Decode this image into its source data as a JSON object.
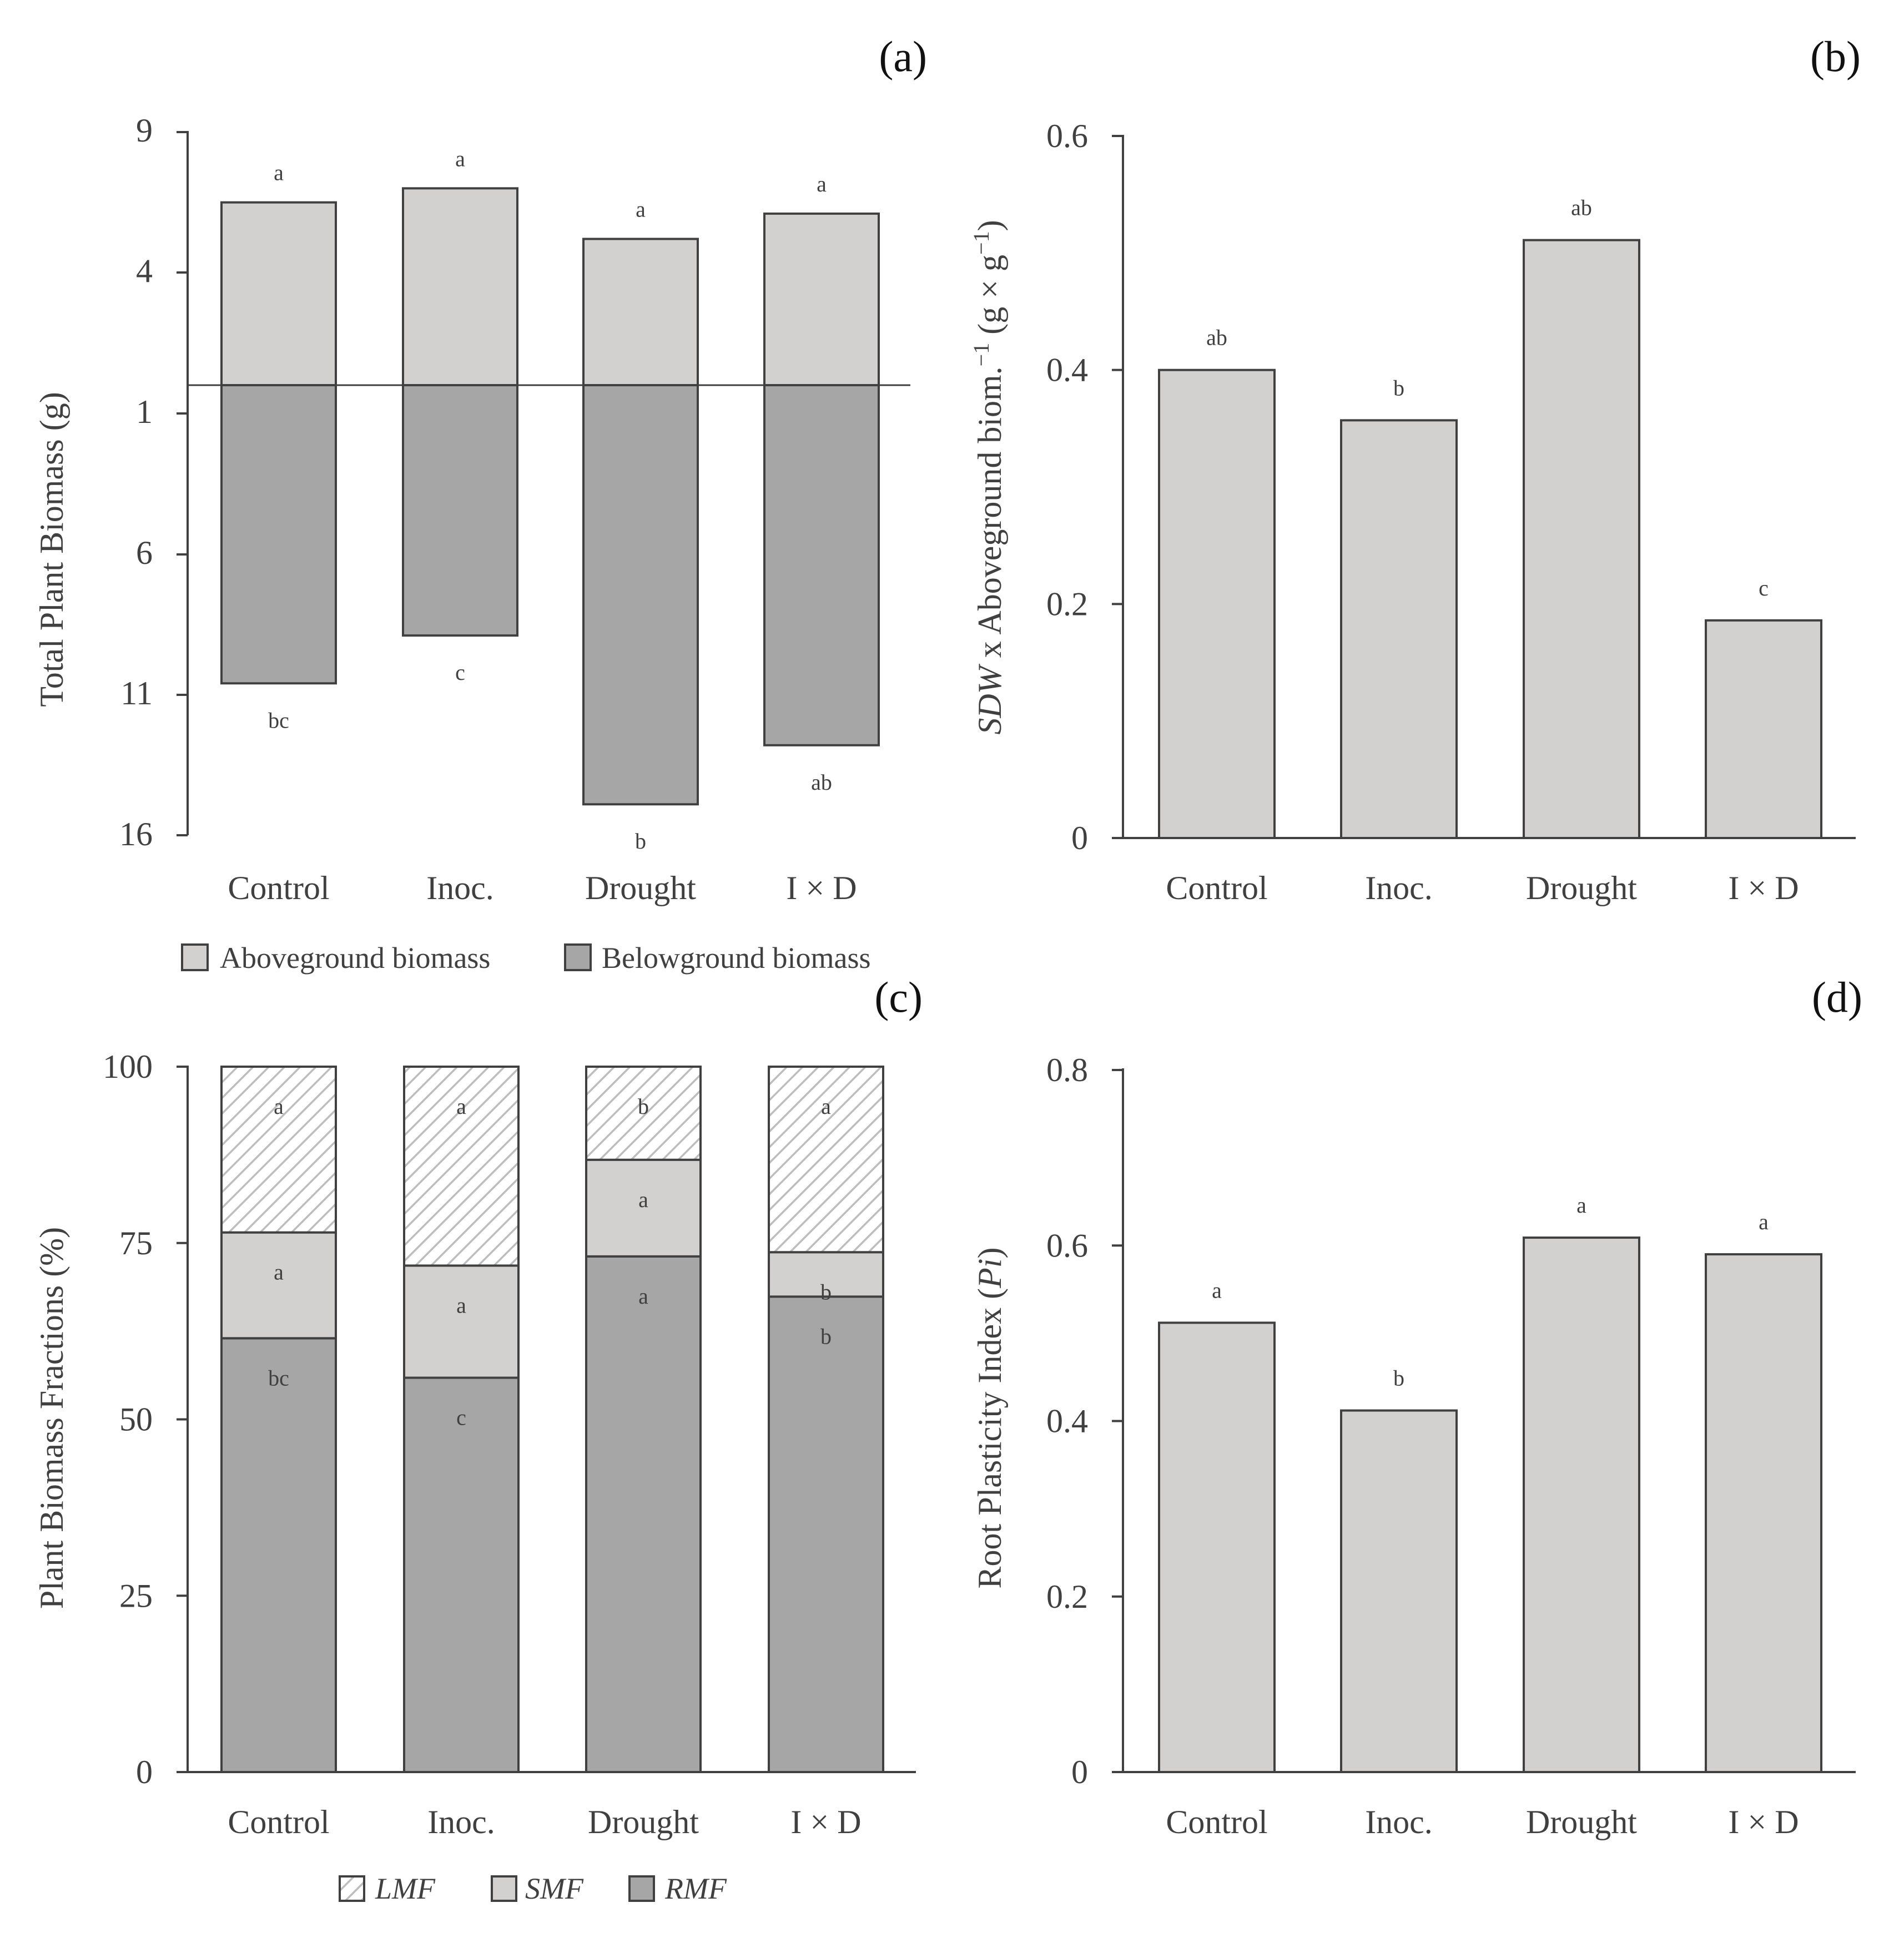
{
  "colors": {
    "above": "#d3d0d0",
    "below": "#a6a6a6",
    "smf": "#d3d0d0",
    "rmf": "#a6a6a6",
    "bar": "#d3d0d0",
    "hatch": "#bdbdbd",
    "axis": "#404040"
  },
  "chart_data": [
    {
      "id": "a",
      "panel_label": "(a)",
      "type": "bar",
      "ylabel": "Total Plant  Biomass (g)",
      "tick_labels": [
        "9",
        "4",
        "1",
        "6",
        "11",
        "16"
      ],
      "categories": [
        "Control",
        "Inoc.",
        "Drought",
        "I × D"
      ],
      "baseline_value": 0,
      "ylim_above": [
        0,
        9
      ],
      "ylim_below": [
        0,
        16
      ],
      "series": [
        {
          "name": "Aboveground biomass",
          "values": [
            6.5,
            7.0,
            5.2,
            6.1
          ],
          "letters": [
            "a",
            "a",
            "a",
            "a"
          ]
        },
        {
          "name": "Belowground biomass",
          "values": [
            10.6,
            8.9,
            14.9,
            12.8
          ],
          "letters": [
            "bc",
            "c",
            "b",
            "ab"
          ]
        }
      ],
      "legend": [
        "Aboveground biomass",
        "Belowground biomass"
      ]
    },
    {
      "id": "b",
      "panel_label": "(b)",
      "type": "bar",
      "ylabel_italic": "SDW",
      "ylabel_text": " x Aboveground biom.",
      "ylabel_sup1": "−1",
      "ylabel_unit_a": " (g × g",
      "ylabel_sup2": "−1",
      "ylabel_close": ")",
      "ylim": [
        0,
        0.6
      ],
      "ticks": [
        0,
        0.2,
        0.4,
        0.6
      ],
      "tick_labels": [
        "0",
        "0.2",
        "0.4",
        "0.6"
      ],
      "categories": [
        "Control",
        "Inoc.",
        "Drought",
        "I × D"
      ],
      "values": [
        0.4,
        0.357,
        0.511,
        0.186
      ],
      "letters": [
        "ab",
        "b",
        "ab",
        "c"
      ]
    },
    {
      "id": "c",
      "panel_label": "(c)",
      "type": "bar",
      "ylabel": "Plant Biomass Fractions (%)",
      "ylim": [
        0,
        100
      ],
      "ticks": [
        0,
        25,
        50,
        75,
        100
      ],
      "tick_labels": [
        "0",
        "25",
        "50",
        "75",
        "100"
      ],
      "categories": [
        "Control",
        "Inoc.",
        "Drought",
        "I × D"
      ],
      "series": [
        {
          "name": "RMF",
          "values": [
            61.5,
            55.9,
            73.1,
            67.4
          ],
          "letters": [
            "bc",
            "c",
            "a",
            "b"
          ]
        },
        {
          "name": "SMF",
          "values": [
            15.0,
            15.9,
            13.7,
            6.3
          ],
          "letters": [
            "a",
            "a",
            "a",
            "b"
          ]
        },
        {
          "name": "LMF",
          "values": [
            23.5,
            28.2,
            13.2,
            26.3
          ],
          "letters": [
            "a",
            "a",
            "b",
            "a"
          ]
        }
      ],
      "legend": [
        "LMF",
        "SMF",
        "RMF"
      ]
    },
    {
      "id": "d",
      "panel_label": "(d)",
      "type": "bar",
      "ylabel_text": "Root  Plasticity Index (",
      "ylabel_italic": "Pi",
      "ylabel_close": ")",
      "ylim": [
        0,
        0.8
      ],
      "ticks": [
        0,
        0.2,
        0.4,
        0.6,
        0.8
      ],
      "tick_labels": [
        "0",
        "0.2",
        "0.4",
        "0.6",
        "0.8"
      ],
      "categories": [
        "Control",
        "Inoc.",
        "Drought",
        "I × D"
      ],
      "values": [
        0.512,
        0.412,
        0.609,
        0.59
      ],
      "letters": [
        "a",
        "b",
        "a",
        "a"
      ]
    }
  ]
}
